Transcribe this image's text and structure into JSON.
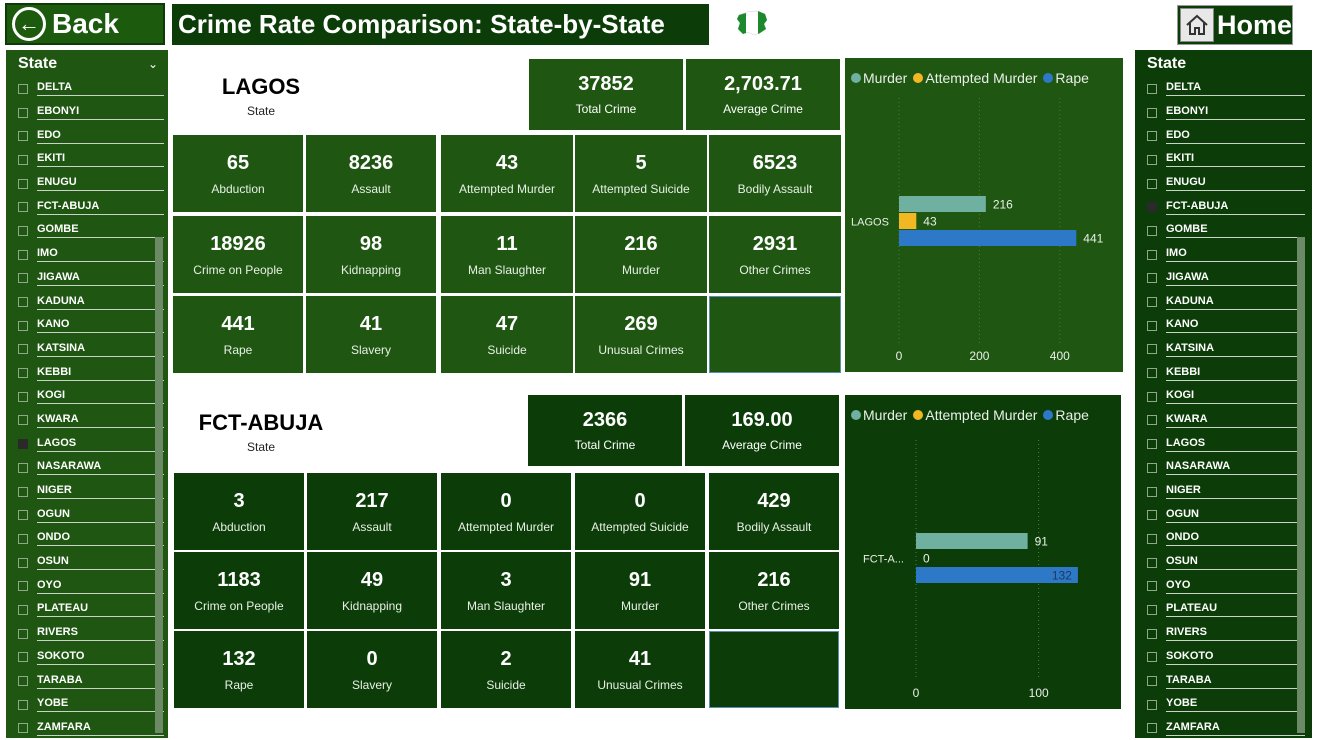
{
  "header": {
    "back_label": "Back",
    "title": "Crime Rate Comparison: State-by-State",
    "home_label": "Home"
  },
  "colors": {
    "dark_green": "#0c3d08",
    "mid_green": "#1f5712",
    "murder": "#6fb0a0",
    "attempted_murder": "#f2b824",
    "rape": "#2e78c8"
  },
  "slicer_left": {
    "title": "State",
    "selected": "LAGOS",
    "items": [
      "DELTA",
      "EBONYI",
      "EDO",
      "EKITI",
      "ENUGU",
      "FCT-ABUJA",
      "GOMBE",
      "IMO",
      "JIGAWA",
      "KADUNA",
      "KANO",
      "KATSINA",
      "KEBBI",
      "KOGI",
      "KWARA",
      "LAGOS",
      "NASARAWA",
      "NIGER",
      "OGUN",
      "ONDO",
      "OSUN",
      "OYO",
      "PLATEAU",
      "RIVERS",
      "SOKOTO",
      "TARABA",
      "YOBE",
      "ZAMFARA"
    ]
  },
  "slicer_right": {
    "title": "State",
    "selected": "FCT-ABUJA",
    "items": [
      "DELTA",
      "EBONYI",
      "EDO",
      "EKITI",
      "ENUGU",
      "FCT-ABUJA",
      "GOMBE",
      "IMO",
      "JIGAWA",
      "KADUNA",
      "KANO",
      "KATSINA",
      "KEBBI",
      "KOGI",
      "KWARA",
      "LAGOS",
      "NASARAWA",
      "NIGER",
      "OGUN",
      "ONDO",
      "OSUN",
      "OYO",
      "PLATEAU",
      "RIVERS",
      "SOKOTO",
      "TARABA",
      "YOBE",
      "ZAMFARA"
    ]
  },
  "lagos": {
    "name": "LAGOS",
    "sub": "State",
    "total_value": "37852",
    "total_label": "Total Crime",
    "avg_value": "2,703.71",
    "avg_label": "Average Crime",
    "tiles": [
      {
        "v": "65",
        "l": "Abduction"
      },
      {
        "v": "8236",
        "l": "Assault"
      },
      {
        "v": "43",
        "l": "Attempted Murder"
      },
      {
        "v": "5",
        "l": "Attempted Suicide"
      },
      {
        "v": "6523",
        "l": "Bodily Assault"
      },
      {
        "v": "18926",
        "l": "Crime on People"
      },
      {
        "v": "98",
        "l": "Kidnapping"
      },
      {
        "v": "11",
        "l": "Man Slaughter"
      },
      {
        "v": "216",
        "l": "Murder"
      },
      {
        "v": "2931",
        "l": "Other Crimes"
      },
      {
        "v": "441",
        "l": "Rape"
      },
      {
        "v": "41",
        "l": "Slavery"
      },
      {
        "v": "47",
        "l": "Suicide"
      },
      {
        "v": "269",
        "l": "Unusual Crimes"
      }
    ]
  },
  "abuja": {
    "name": "FCT-ABUJA",
    "sub": "State",
    "total_value": "2366",
    "total_label": "Total Crime",
    "avg_value": "169.00",
    "avg_label": "Average Crime",
    "tiles": [
      {
        "v": "3",
        "l": "Abduction"
      },
      {
        "v": "217",
        "l": "Assault"
      },
      {
        "v": "0",
        "l": "Attempted Murder"
      },
      {
        "v": "0",
        "l": "Attempted Suicide"
      },
      {
        "v": "429",
        "l": "Bodily Assault"
      },
      {
        "v": "1183",
        "l": "Crime on People"
      },
      {
        "v": "49",
        "l": "Kidnapping"
      },
      {
        "v": "3",
        "l": "Man Slaughter"
      },
      {
        "v": "91",
        "l": "Murder"
      },
      {
        "v": "216",
        "l": "Other Crimes"
      },
      {
        "v": "132",
        "l": "Rape"
      },
      {
        "v": "0",
        "l": "Slavery"
      },
      {
        "v": "2",
        "l": "Suicide"
      },
      {
        "v": "41",
        "l": "Unusual Crimes"
      }
    ]
  },
  "chart_data": [
    {
      "type": "bar",
      "orientation": "horizontal",
      "categories": [
        "LAGOS"
      ],
      "series": [
        {
          "name": "Murder",
          "values": [
            216
          ]
        },
        {
          "name": "Attempted Murder",
          "values": [
            43
          ]
        },
        {
          "name": "Rape",
          "values": [
            441
          ]
        }
      ],
      "xticks": [
        "0",
        "200",
        "400"
      ],
      "xlim": [
        0,
        490
      ],
      "legend": "top-left",
      "grid": true
    },
    {
      "type": "bar",
      "orientation": "horizontal",
      "categories": [
        "FCT-A..."
      ],
      "series": [
        {
          "name": "Murder",
          "values": [
            91
          ]
        },
        {
          "name": "Attempted Murder",
          "values": [
            0
          ]
        },
        {
          "name": "Rape",
          "values": [
            132
          ]
        }
      ],
      "xticks": [
        "0",
        "100"
      ],
      "xlim": [
        0,
        150
      ],
      "legend": "top-left",
      "grid": true
    }
  ]
}
